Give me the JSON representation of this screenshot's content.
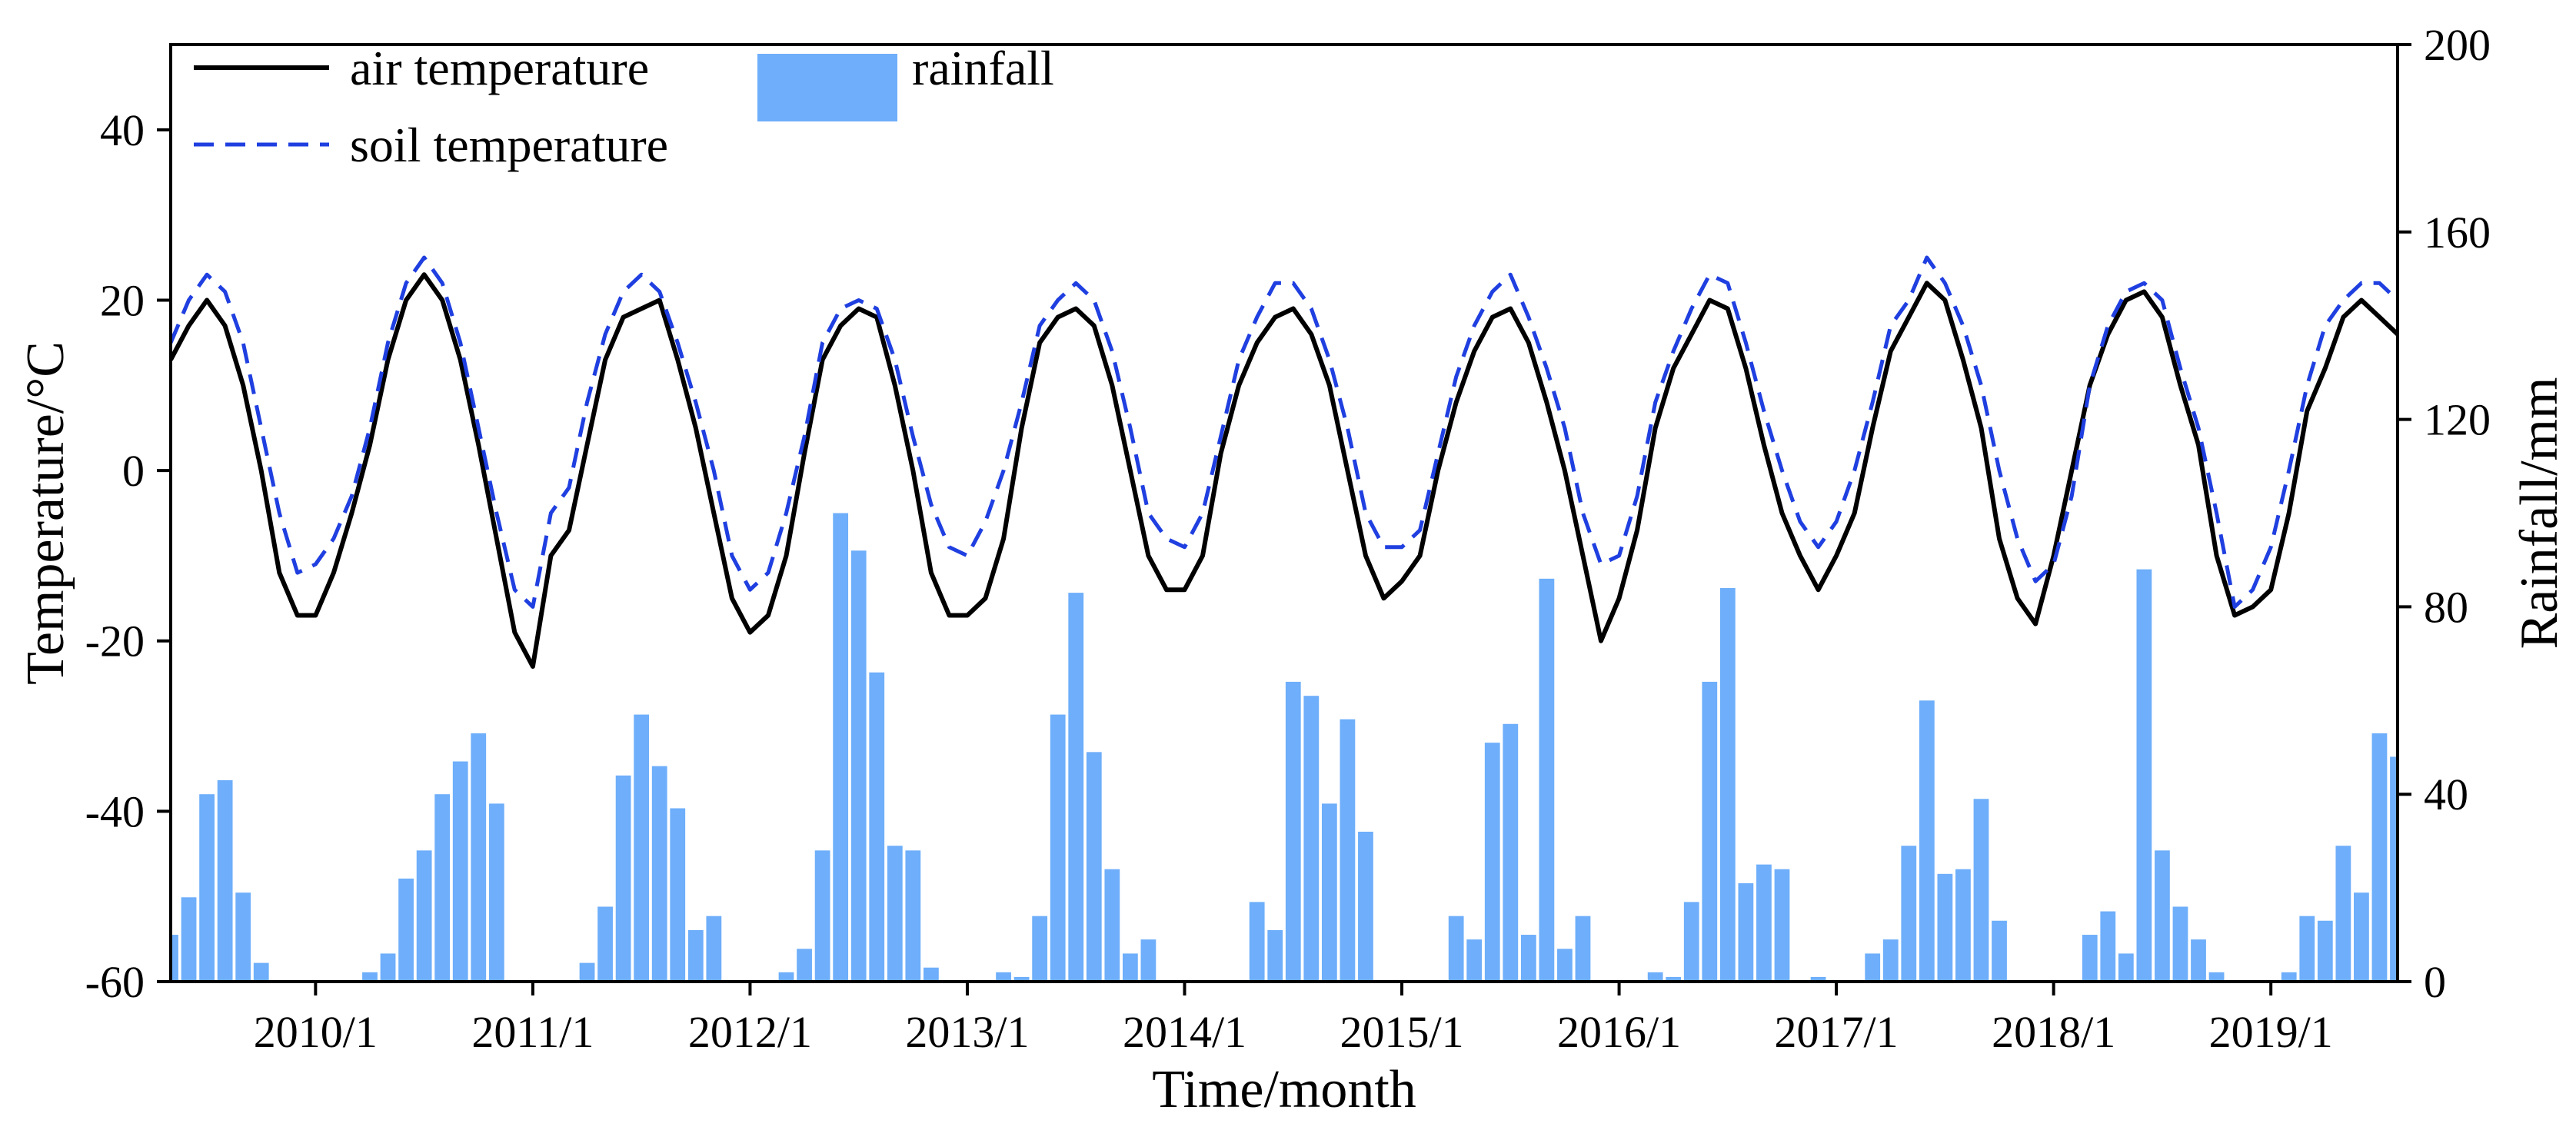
{
  "chart_data": {
    "type": "line+bar",
    "title": "",
    "xlabel": "Time/month",
    "ylabel_left": "Temperature/°C",
    "ylabel_right": "Rainfall/mm",
    "ylim_left": [
      -60,
      50
    ],
    "ylim_right": [
      0,
      200
    ],
    "yticks_left": [
      -60,
      -40,
      -20,
      0,
      20,
      40
    ],
    "yticks_right": [
      0,
      40,
      80,
      120,
      160,
      200
    ],
    "x_start": "2009/5",
    "x_end": "2019/8",
    "x_range_month_index": [
      0,
      123
    ],
    "xtick_labels": [
      "2010/1",
      "2011/1",
      "2012/1",
      "2013/1",
      "2014/1",
      "2015/1",
      "2016/1",
      "2017/1",
      "2018/1",
      "2019/1"
    ],
    "xtick_month_index": [
      8,
      20,
      32,
      44,
      56,
      68,
      80,
      92,
      104,
      116
    ],
    "legend": [
      {
        "label": "air temperature",
        "style": "solid",
        "color": "#000000"
      },
      {
        "label": "rainfall",
        "style": "bar",
        "color": "#6eaefa"
      },
      {
        "label": "soil temperature",
        "style": "dashed",
        "color": "#1f3fe0"
      }
    ],
    "series": [
      {
        "name": "air temperature",
        "type": "line",
        "x": [
          0,
          1,
          2,
          3,
          4,
          5,
          6,
          7,
          8,
          9,
          10,
          11,
          12,
          13,
          14,
          15,
          16,
          17,
          18,
          19,
          20,
          21,
          22,
          23,
          24,
          25,
          26,
          27,
          28,
          29,
          30,
          31,
          32,
          33,
          34,
          35,
          36,
          37,
          38,
          39,
          40,
          41,
          42,
          43,
          44,
          45,
          46,
          47,
          48,
          49,
          50,
          51,
          52,
          53,
          54,
          55,
          56,
          57,
          58,
          59,
          60,
          61,
          62,
          63,
          64,
          65,
          66,
          67,
          68,
          69,
          70,
          71,
          72,
          73,
          74,
          75,
          76,
          77,
          78,
          79,
          80,
          81,
          82,
          83,
          84,
          85,
          86,
          87,
          88,
          89,
          90,
          91,
          92,
          93,
          94,
          95,
          96,
          97,
          98,
          99,
          100,
          101,
          102,
          103,
          104,
          105,
          106,
          107,
          108,
          109,
          110,
          111,
          112,
          113,
          114,
          115,
          116,
          117,
          118,
          119,
          120,
          121,
          122,
          123
        ],
        "values": [
          13,
          17,
          20,
          17,
          10,
          0,
          -12,
          -17,
          -17,
          -12,
          -5,
          3,
          13,
          20,
          23,
          20,
          13,
          3,
          -8,
          -19,
          -23,
          -10,
          -7,
          3,
          13,
          18,
          19,
          20,
          13,
          5,
          -5,
          -15,
          -19,
          -17,
          -10,
          2,
          13,
          17,
          19,
          18,
          10,
          0,
          -12,
          -17,
          -17,
          -15,
          -8,
          5,
          15,
          18,
          19,
          17,
          10,
          0,
          -10,
          -14,
          -14,
          -10,
          2,
          10,
          15,
          18,
          19,
          16,
          10,
          0,
          -10,
          -15,
          -13,
          -10,
          0,
          8,
          14,
          18,
          19,
          15,
          8,
          0,
          -10,
          -20,
          -15,
          -7,
          5,
          12,
          16,
          20,
          19,
          12,
          3,
          -5,
          -10,
          -14,
          -10,
          -5,
          5,
          14,
          18,
          22,
          20,
          13,
          5,
          -8,
          -15,
          -18,
          -10,
          0,
          10,
          16,
          20,
          21,
          18,
          10,
          3,
          -10,
          -17,
          -16,
          -14,
          -5,
          7,
          12,
          18,
          20,
          18,
          16
        ]
      },
      {
        "name": "soil temperature",
        "type": "line",
        "x": [
          0,
          1,
          2,
          3,
          4,
          5,
          6,
          7,
          8,
          9,
          10,
          11,
          12,
          13,
          14,
          15,
          16,
          17,
          18,
          19,
          20,
          21,
          22,
          23,
          24,
          25,
          26,
          27,
          28,
          29,
          30,
          31,
          32,
          33,
          34,
          35,
          36,
          37,
          38,
          39,
          40,
          41,
          42,
          43,
          44,
          45,
          46,
          47,
          48,
          49,
          50,
          51,
          52,
          53,
          54,
          55,
          56,
          57,
          58,
          59,
          60,
          61,
          62,
          63,
          64,
          65,
          66,
          67,
          68,
          69,
          70,
          71,
          72,
          73,
          74,
          75,
          76,
          77,
          78,
          79,
          80,
          81,
          82,
          83,
          84,
          85,
          86,
          87,
          88,
          89,
          90,
          91,
          92,
          93,
          94,
          95,
          96,
          97,
          98,
          99,
          100,
          101,
          102,
          103,
          104,
          105,
          106,
          107,
          108,
          109,
          110,
          111,
          112,
          113,
          114,
          115,
          116,
          117,
          118,
          119,
          120,
          121,
          122,
          123
        ],
        "values": [
          15,
          20,
          23,
          21,
          15,
          5,
          -5,
          -12,
          -11,
          -8,
          -3,
          5,
          15,
          22,
          25,
          22,
          15,
          5,
          -5,
          -14,
          -16,
          -5,
          -2,
          8,
          16,
          21,
          23,
          21,
          15,
          8,
          0,
          -10,
          -14,
          -12,
          -5,
          4,
          15,
          19,
          20,
          19,
          13,
          4,
          -4,
          -9,
          -10,
          -6,
          0,
          8,
          17,
          20,
          22,
          20,
          14,
          5,
          -5,
          -8,
          -9,
          -5,
          4,
          13,
          18,
          22,
          22,
          19,
          13,
          5,
          -5,
          -9,
          -9,
          -7,
          2,
          11,
          17,
          21,
          23,
          18,
          12,
          5,
          -5,
          -11,
          -10,
          -3,
          8,
          14,
          19,
          23,
          22,
          15,
          7,
          0,
          -6,
          -9,
          -6,
          0,
          8,
          17,
          20,
          25,
          22,
          17,
          10,
          0,
          -8,
          -13,
          -11,
          -3,
          10,
          17,
          21,
          22,
          20,
          12,
          5,
          -5,
          -16,
          -14,
          -9,
          0,
          10,
          17,
          20,
          22,
          22,
          20
        ]
      },
      {
        "name": "rainfall",
        "type": "bar",
        "axis": "right",
        "x": [
          0,
          1,
          2,
          3,
          4,
          5,
          6,
          7,
          8,
          9,
          10,
          11,
          12,
          13,
          14,
          15,
          16,
          17,
          18,
          19,
          20,
          21,
          22,
          23,
          24,
          25,
          26,
          27,
          28,
          29,
          30,
          31,
          32,
          33,
          34,
          35,
          36,
          37,
          38,
          39,
          40,
          41,
          42,
          43,
          44,
          45,
          46,
          47,
          48,
          49,
          50,
          51,
          52,
          53,
          54,
          55,
          56,
          57,
          58,
          59,
          60,
          61,
          62,
          63,
          64,
          65,
          66,
          67,
          68,
          69,
          70,
          71,
          72,
          73,
          74,
          75,
          76,
          77,
          78,
          79,
          80,
          81,
          82,
          83,
          84,
          85,
          86,
          87,
          88,
          89,
          90,
          91,
          92,
          93,
          94,
          95,
          96,
          97,
          98,
          99,
          100,
          101,
          102,
          103,
          104,
          105,
          106,
          107,
          108,
          109,
          110,
          111,
          112,
          113,
          114,
          115,
          116,
          117,
          118,
          119,
          120,
          121,
          122,
          123
        ],
        "values": [
          10,
          18,
          40,
          43,
          19,
          4,
          0,
          0,
          0,
          0,
          0,
          2,
          6,
          22,
          28,
          40,
          47,
          53,
          38,
          0,
          0,
          0,
          0,
          4,
          16,
          44,
          57,
          46,
          37,
          11,
          14,
          0,
          0,
          0,
          2,
          7,
          28,
          100,
          92,
          66,
          29,
          28,
          3,
          0,
          0,
          0,
          2,
          1,
          14,
          57,
          83,
          49,
          24,
          6,
          9,
          0,
          0,
          0,
          0,
          0,
          17,
          11,
          64,
          61,
          38,
          56,
          32,
          0,
          0,
          0,
          0,
          14,
          9,
          51,
          55,
          10,
          86,
          7,
          14,
          0,
          0,
          0,
          2,
          1,
          17,
          64,
          84,
          21,
          25,
          24,
          0,
          1,
          0,
          0,
          6,
          9,
          29,
          60,
          23,
          24,
          39,
          13,
          0,
          0,
          0,
          0,
          10,
          15,
          6,
          88,
          28,
          16,
          9,
          2,
          0,
          0,
          0,
          2,
          14,
          13,
          29,
          19,
          53,
          48
        ]
      }
    ]
  }
}
